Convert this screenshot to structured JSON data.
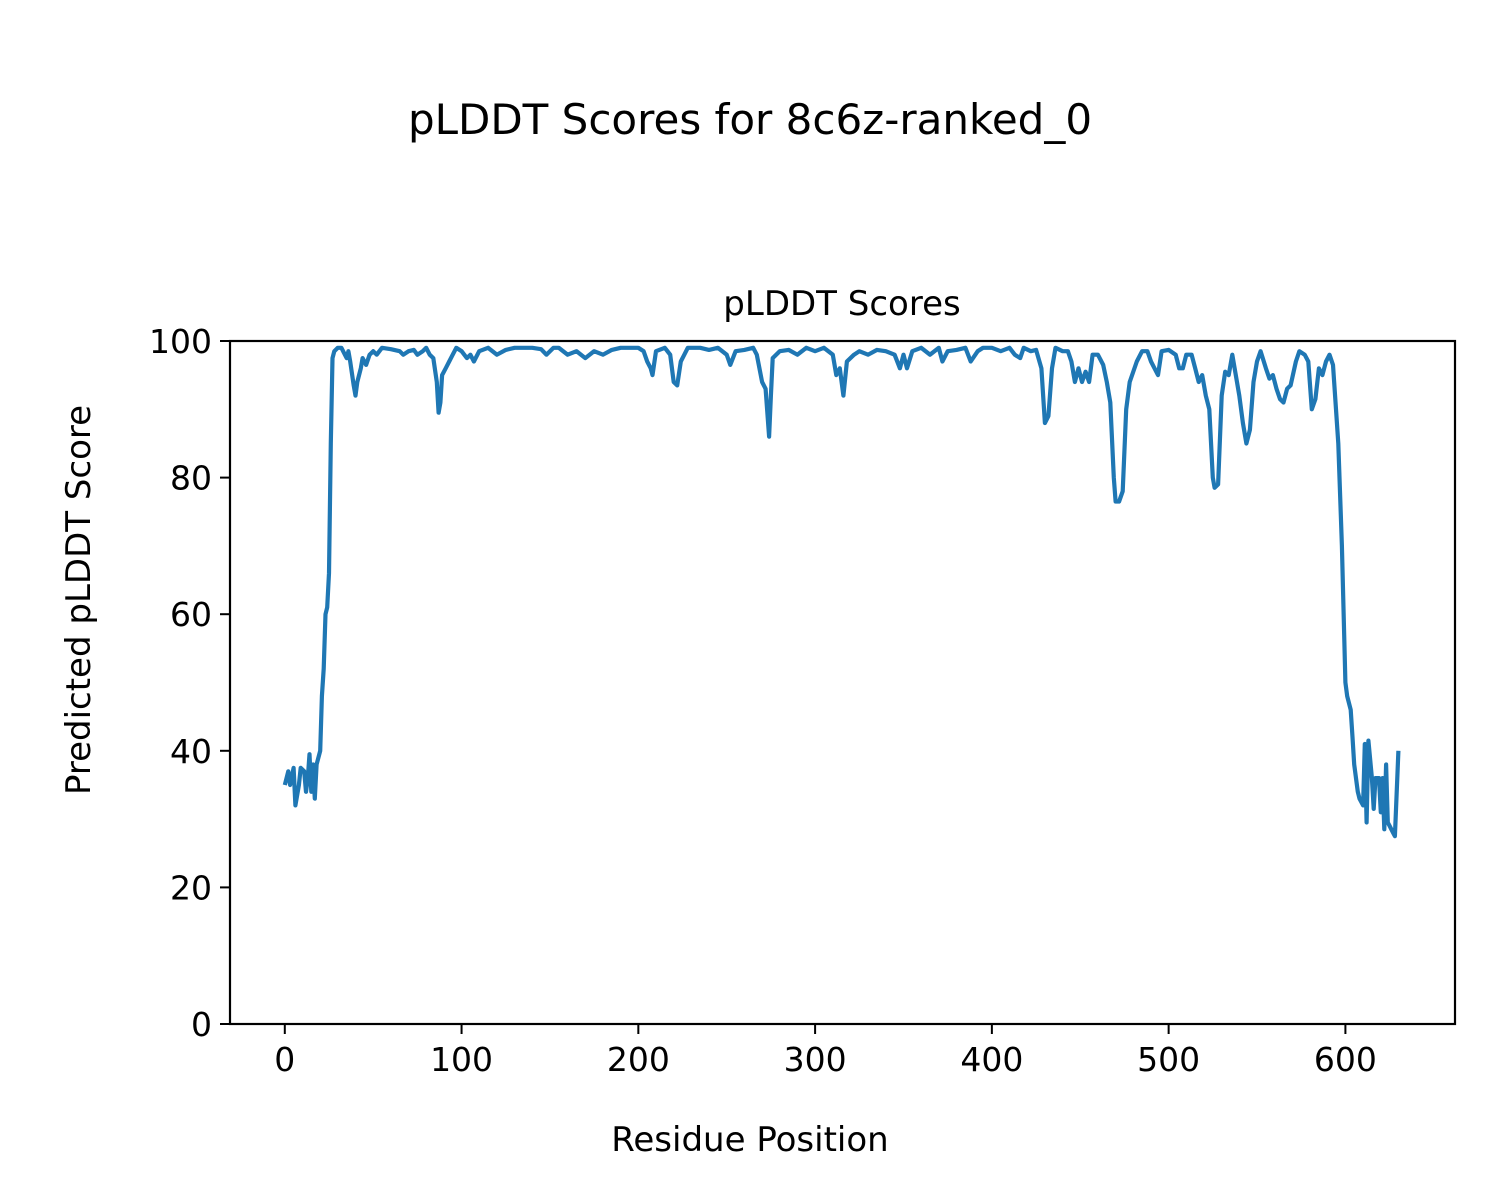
{
  "figure_title": "pLDDT Scores for 8c6z-ranked_0",
  "chart_data": {
    "type": "line",
    "title": "pLDDT Scores",
    "xlabel": "Residue Position",
    "ylabel": "Predicted pLDDT Score",
    "xlim": [
      -31,
      662
    ],
    "ylim": [
      0,
      100
    ],
    "xticks": [
      0,
      100,
      200,
      300,
      400,
      500,
      600
    ],
    "yticks": [
      0,
      20,
      40,
      60,
      80,
      100
    ],
    "grid": false,
    "color": "#1f77b4",
    "series": [
      {
        "name": "pLDDT",
        "points": [
          [
            0,
            35
          ],
          [
            2,
            37
          ],
          [
            3,
            35
          ],
          [
            5,
            37.5
          ],
          [
            6,
            32
          ],
          [
            8,
            35
          ],
          [
            9,
            37.5
          ],
          [
            11,
            37
          ],
          [
            12,
            34
          ],
          [
            13,
            36
          ],
          [
            14,
            39.5
          ],
          [
            15,
            34
          ],
          [
            16,
            38
          ],
          [
            17,
            33
          ],
          [
            18,
            38
          ],
          [
            20,
            40
          ],
          [
            21,
            48
          ],
          [
            22,
            52
          ],
          [
            23,
            60
          ],
          [
            24,
            61
          ],
          [
            25,
            66
          ],
          [
            26,
            85
          ],
          [
            27,
            97.5
          ],
          [
            28,
            98.5
          ],
          [
            30,
            99
          ],
          [
            32,
            99
          ],
          [
            34,
            98
          ],
          [
            35,
            97.5
          ],
          [
            36,
            98.5
          ],
          [
            37,
            97
          ],
          [
            39,
            93.5
          ],
          [
            40,
            92
          ],
          [
            41,
            94
          ],
          [
            43,
            96
          ],
          [
            44,
            97.5
          ],
          [
            46,
            96.5
          ],
          [
            48,
            98
          ],
          [
            50,
            98.5
          ],
          [
            52,
            98
          ],
          [
            55,
            99
          ],
          [
            60,
            98.8
          ],
          [
            65,
            98.5
          ],
          [
            67,
            98
          ],
          [
            70,
            98.5
          ],
          [
            73,
            98.7
          ],
          [
            75,
            98
          ],
          [
            78,
            98.5
          ],
          [
            80,
            99
          ],
          [
            82,
            98
          ],
          [
            84,
            97.5
          ],
          [
            86,
            94
          ],
          [
            87,
            89.5
          ],
          [
            88,
            91
          ],
          [
            89,
            95
          ],
          [
            91,
            96
          ],
          [
            93,
            97
          ],
          [
            95,
            98
          ],
          [
            97,
            99
          ],
          [
            100,
            98.5
          ],
          [
            103,
            97.5
          ],
          [
            105,
            98
          ],
          [
            107,
            97
          ],
          [
            110,
            98.5
          ],
          [
            115,
            99
          ],
          [
            120,
            98
          ],
          [
            125,
            98.7
          ],
          [
            130,
            99
          ],
          [
            140,
            99
          ],
          [
            145,
            98.8
          ],
          [
            148,
            98
          ],
          [
            152,
            99
          ],
          [
            155,
            99
          ],
          [
            160,
            98
          ],
          [
            165,
            98.5
          ],
          [
            170,
            97.5
          ],
          [
            175,
            98.5
          ],
          [
            180,
            98
          ],
          [
            185,
            98.7
          ],
          [
            190,
            99
          ],
          [
            200,
            99
          ],
          [
            203,
            98.5
          ],
          [
            205,
            97
          ],
          [
            207,
            96
          ],
          [
            208,
            95
          ],
          [
            210,
            98.5
          ],
          [
            215,
            99
          ],
          [
            218,
            98
          ],
          [
            220,
            94
          ],
          [
            222,
            93.5
          ],
          [
            224,
            97
          ],
          [
            226,
            98
          ],
          [
            228,
            99
          ],
          [
            235,
            99
          ],
          [
            240,
            98.7
          ],
          [
            245,
            99
          ],
          [
            250,
            98
          ],
          [
            252,
            96.5
          ],
          [
            255,
            98.5
          ],
          [
            260,
            98.7
          ],
          [
            265,
            99
          ],
          [
            267,
            98
          ],
          [
            270,
            94
          ],
          [
            272,
            93
          ],
          [
            274,
            86
          ],
          [
            275,
            92
          ],
          [
            276,
            97.5
          ],
          [
            280,
            98.5
          ],
          [
            285,
            98.7
          ],
          [
            290,
            98
          ],
          [
            295,
            99
          ],
          [
            300,
            98.5
          ],
          [
            305,
            99
          ],
          [
            310,
            98
          ],
          [
            312,
            95
          ],
          [
            314,
            96
          ],
          [
            316,
            92
          ],
          [
            318,
            97
          ],
          [
            322,
            98
          ],
          [
            325,
            98.5
          ],
          [
            330,
            98
          ],
          [
            335,
            98.7
          ],
          [
            340,
            98.5
          ],
          [
            345,
            98
          ],
          [
            348,
            96
          ],
          [
            350,
            98
          ],
          [
            352,
            96
          ],
          [
            355,
            98.5
          ],
          [
            360,
            99
          ],
          [
            365,
            98
          ],
          [
            370,
            99
          ],
          [
            372,
            97
          ],
          [
            375,
            98.5
          ],
          [
            380,
            98.7
          ],
          [
            385,
            99
          ],
          [
            388,
            97
          ],
          [
            392,
            98.5
          ],
          [
            395,
            99
          ],
          [
            400,
            99
          ],
          [
            405,
            98.5
          ],
          [
            410,
            99
          ],
          [
            413,
            98
          ],
          [
            416,
            97.5
          ],
          [
            418,
            99
          ],
          [
            422,
            98.5
          ],
          [
            425,
            98.7
          ],
          [
            428,
            96
          ],
          [
            430,
            88
          ],
          [
            432,
            89
          ],
          [
            434,
            96
          ],
          [
            436,
            99
          ],
          [
            440,
            98.5
          ],
          [
            443,
            98.5
          ],
          [
            445,
            97
          ],
          [
            447,
            94
          ],
          [
            449,
            96
          ],
          [
            451,
            94
          ],
          [
            453,
            95.5
          ],
          [
            455,
            94
          ],
          [
            457,
            98
          ],
          [
            460,
            98
          ],
          [
            463,
            96.5
          ],
          [
            465,
            94
          ],
          [
            467,
            91
          ],
          [
            469,
            80
          ],
          [
            470,
            76.5
          ],
          [
            472,
            76.5
          ],
          [
            474,
            78
          ],
          [
            476,
            90
          ],
          [
            478,
            94
          ],
          [
            482,
            97
          ],
          [
            485,
            98.5
          ],
          [
            488,
            98.5
          ],
          [
            490,
            97
          ],
          [
            492,
            96
          ],
          [
            494,
            95
          ],
          [
            496,
            98.5
          ],
          [
            500,
            98.7
          ],
          [
            504,
            98
          ],
          [
            506,
            96
          ],
          [
            508,
            96
          ],
          [
            510,
            98
          ],
          [
            513,
            98
          ],
          [
            515,
            96
          ],
          [
            517,
            94
          ],
          [
            519,
            95
          ],
          [
            521,
            92
          ],
          [
            523,
            90
          ],
          [
            525,
            80
          ],
          [
            526,
            78.5
          ],
          [
            528,
            79
          ],
          [
            530,
            92
          ],
          [
            532,
            95.5
          ],
          [
            534,
            95
          ],
          [
            536,
            98
          ],
          [
            538,
            95
          ],
          [
            540,
            92
          ],
          [
            542,
            88
          ],
          [
            544,
            85
          ],
          [
            546,
            87
          ],
          [
            548,
            94
          ],
          [
            550,
            97
          ],
          [
            552,
            98.5
          ],
          [
            555,
            96
          ],
          [
            557,
            94.5
          ],
          [
            559,
            95
          ],
          [
            561,
            93
          ],
          [
            563,
            91.5
          ],
          [
            565,
            91
          ],
          [
            567,
            93
          ],
          [
            569,
            93.5
          ],
          [
            572,
            97
          ],
          [
            574,
            98.5
          ],
          [
            577,
            98
          ],
          [
            579,
            97
          ],
          [
            581,
            90
          ],
          [
            583,
            91.5
          ],
          [
            585,
            96
          ],
          [
            587,
            95
          ],
          [
            589,
            97
          ],
          [
            591,
            98
          ],
          [
            593,
            96.5
          ],
          [
            596,
            85
          ],
          [
            598,
            70
          ],
          [
            600,
            50
          ],
          [
            601,
            48
          ],
          [
            603,
            46
          ],
          [
            604,
            42
          ],
          [
            605,
            38
          ],
          [
            607,
            34
          ],
          [
            608,
            33
          ],
          [
            609,
            32.5
          ],
          [
            610,
            32
          ],
          [
            611,
            41
          ],
          [
            612,
            29.5
          ],
          [
            613,
            41.5
          ],
          [
            615,
            36
          ],
          [
            616,
            31.5
          ],
          [
            617,
            36
          ],
          [
            619,
            36
          ],
          [
            620,
            31
          ],
          [
            621,
            36
          ],
          [
            622,
            28.5
          ],
          [
            623,
            38
          ],
          [
            624,
            29.5
          ],
          [
            625,
            29
          ],
          [
            627,
            28
          ],
          [
            628,
            27.5
          ],
          [
            630,
            40
          ]
        ]
      }
    ]
  }
}
